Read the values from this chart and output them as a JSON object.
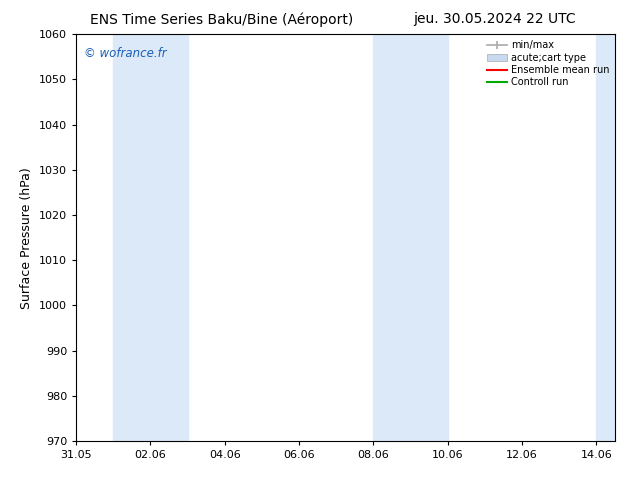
{
  "title_left": "ENS Time Series Baku/Bine (Aéroport)",
  "title_right": "jeu. 30.05.2024 22 UTC",
  "ylabel": "Surface Pressure (hPa)",
  "ylim": [
    970,
    1060
  ],
  "yticks": [
    970,
    980,
    990,
    1000,
    1010,
    1020,
    1030,
    1040,
    1050,
    1060
  ],
  "xtick_labels": [
    "31.05",
    "02.06",
    "04.06",
    "06.06",
    "08.06",
    "10.06",
    "12.06",
    "14.06"
  ],
  "xtick_positions": [
    0,
    2,
    4,
    6,
    8,
    10,
    12,
    14
  ],
  "xlim": [
    0,
    14.5
  ],
  "watermark": "© wofrance.fr",
  "watermark_color": "#1a5fb4",
  "bg_color": "#ffffff",
  "plot_bg_color": "#ffffff",
  "shaded_regions": [
    {
      "x_start": 1.0,
      "x_end": 3.0,
      "color": "#dce9f8"
    },
    {
      "x_start": 8.0,
      "x_end": 10.0,
      "color": "#dce9f8"
    },
    {
      "x_start": 14.0,
      "x_end": 14.5,
      "color": "#dce9f8"
    }
  ],
  "legend_entries": [
    {
      "label": "min/max",
      "color": "#aaaaaa",
      "style": "errorbar"
    },
    {
      "label": "acute;cart type",
      "color": "#c8daf0",
      "style": "fill"
    },
    {
      "label": "Ensemble mean run",
      "color": "#ff0000",
      "style": "line"
    },
    {
      "label": "Controll run",
      "color": "#00aa00",
      "style": "line"
    }
  ],
  "title_fontsize": 10,
  "tick_fontsize": 8,
  "ylabel_fontsize": 9
}
